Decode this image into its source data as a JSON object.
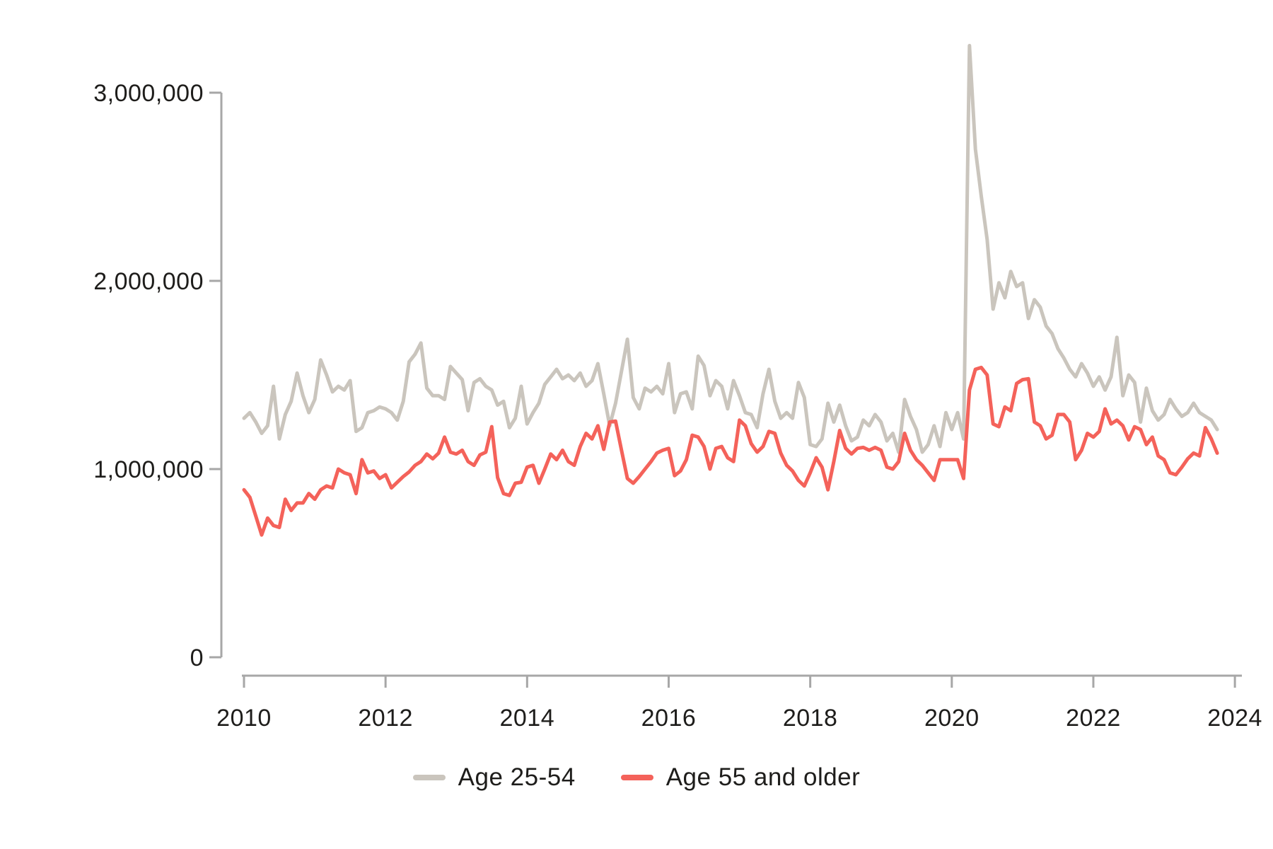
{
  "chart_data": {
    "type": "line",
    "title": "",
    "x_unit": "monthly",
    "x_start": "2010-01",
    "x_end": "2023-10",
    "x_tick_labels": [
      "2010",
      "2012",
      "2014",
      "2016",
      "2018",
      "2020",
      "2022",
      "2024"
    ],
    "y_tick_labels": [
      "0",
      "1,000,000",
      "2,000,000",
      "3,000,000"
    ],
    "y_tick_values_millions": [
      0,
      1,
      2,
      3
    ],
    "ylim_millions": [
      0,
      3.3
    ],
    "grid": false,
    "legend_position": "bottom-center",
    "series": [
      {
        "name": "Age 25-54",
        "color": "#cac5bd",
        "values_millions": [
          1.27,
          1.3,
          1.25,
          1.19,
          1.23,
          1.44,
          1.16,
          1.29,
          1.36,
          1.51,
          1.39,
          1.3,
          1.37,
          1.58,
          1.5,
          1.41,
          1.44,
          1.42,
          1.47,
          1.2,
          1.22,
          1.3,
          1.31,
          1.33,
          1.32,
          1.3,
          1.26,
          1.36,
          1.57,
          1.61,
          1.67,
          1.43,
          1.39,
          1.39,
          1.37,
          1.545,
          1.51,
          1.475,
          1.31,
          1.46,
          1.48,
          1.44,
          1.42,
          1.34,
          1.36,
          1.22,
          1.27,
          1.44,
          1.24,
          1.3,
          1.35,
          1.45,
          1.49,
          1.53,
          1.48,
          1.5,
          1.47,
          1.51,
          1.44,
          1.47,
          1.56,
          1.4,
          1.23,
          1.35,
          1.52,
          1.69,
          1.38,
          1.32,
          1.43,
          1.41,
          1.44,
          1.4,
          1.56,
          1.3,
          1.4,
          1.41,
          1.32,
          1.6,
          1.55,
          1.39,
          1.47,
          1.44,
          1.32,
          1.47,
          1.39,
          1.3,
          1.29,
          1.22,
          1.4,
          1.53,
          1.36,
          1.27,
          1.3,
          1.27,
          1.46,
          1.38,
          1.13,
          1.12,
          1.16,
          1.35,
          1.25,
          1.34,
          1.23,
          1.15,
          1.17,
          1.26,
          1.23,
          1.29,
          1.25,
          1.15,
          1.19,
          1.09,
          1.37,
          1.28,
          1.21,
          1.09,
          1.13,
          1.23,
          1.12,
          1.3,
          1.21,
          1.3,
          1.16,
          3.25,
          2.7,
          2.45,
          2.22,
          1.85,
          1.99,
          1.91,
          2.05,
          1.97,
          1.99,
          1.8,
          1.9,
          1.86,
          1.76,
          1.72,
          1.64,
          1.59,
          1.53,
          1.49,
          1.56,
          1.51,
          1.44,
          1.49,
          1.42,
          1.49,
          1.7,
          1.39,
          1.5,
          1.46,
          1.25,
          1.43,
          1.31,
          1.26,
          1.29,
          1.37,
          1.32,
          1.28,
          1.3,
          1.35,
          1.3,
          1.28,
          1.26,
          1.21
        ]
      },
      {
        "name": "Age 55 and older",
        "color": "#f4625a",
        "values_millions": [
          0.89,
          0.85,
          0.75,
          0.65,
          0.74,
          0.7,
          0.69,
          0.84,
          0.78,
          0.82,
          0.82,
          0.87,
          0.84,
          0.89,
          0.91,
          0.9,
          1.0,
          0.98,
          0.97,
          0.87,
          1.05,
          0.98,
          0.99,
          0.95,
          0.97,
          0.9,
          0.93,
          0.96,
          0.985,
          1.02,
          1.04,
          1.08,
          1.055,
          1.085,
          1.17,
          1.09,
          1.08,
          1.1,
          1.04,
          1.02,
          1.075,
          1.09,
          1.225,
          0.955,
          0.87,
          0.86,
          0.925,
          0.93,
          1.01,
          1.02,
          0.925,
          1.0,
          1.08,
          1.05,
          1.1,
          1.04,
          1.02,
          1.12,
          1.19,
          1.16,
          1.23,
          1.105,
          1.25,
          1.255,
          1.1,
          0.95,
          0.925,
          0.96,
          1.0,
          1.04,
          1.085,
          1.1,
          1.11,
          0.965,
          0.99,
          1.05,
          1.18,
          1.17,
          1.12,
          1.0,
          1.11,
          1.12,
          1.06,
          1.04,
          1.26,
          1.23,
          1.135,
          1.09,
          1.12,
          1.2,
          1.19,
          1.085,
          1.02,
          0.99,
          0.94,
          0.91,
          0.98,
          1.06,
          1.01,
          0.89,
          1.04,
          1.205,
          1.11,
          1.08,
          1.11,
          1.115,
          1.1,
          1.115,
          1.1,
          1.01,
          1.0,
          1.04,
          1.19,
          1.1,
          1.05,
          1.02,
          0.98,
          0.94,
          1.05,
          1.05,
          1.05,
          1.05,
          0.95,
          1.42,
          1.53,
          1.54,
          1.5,
          1.24,
          1.225,
          1.33,
          1.31,
          1.455,
          1.475,
          1.48,
          1.25,
          1.23,
          1.16,
          1.18,
          1.29,
          1.29,
          1.25,
          1.05,
          1.1,
          1.19,
          1.17,
          1.2,
          1.32,
          1.24,
          1.26,
          1.23,
          1.155,
          1.225,
          1.21,
          1.13,
          1.17,
          1.07,
          1.05,
          0.98,
          0.97,
          1.01,
          1.055,
          1.085,
          1.07,
          1.22,
          1.16,
          1.085
        ]
      }
    ]
  },
  "legend": {
    "items": [
      {
        "label": "Age 25-54",
        "color": "#cac5bd"
      },
      {
        "label": "Age 55 and older",
        "color": "#f4625a"
      }
    ]
  },
  "colors": {
    "background": "#ffffff",
    "axis": "#a7a7a7",
    "tick_text": "#1e1d1b"
  }
}
